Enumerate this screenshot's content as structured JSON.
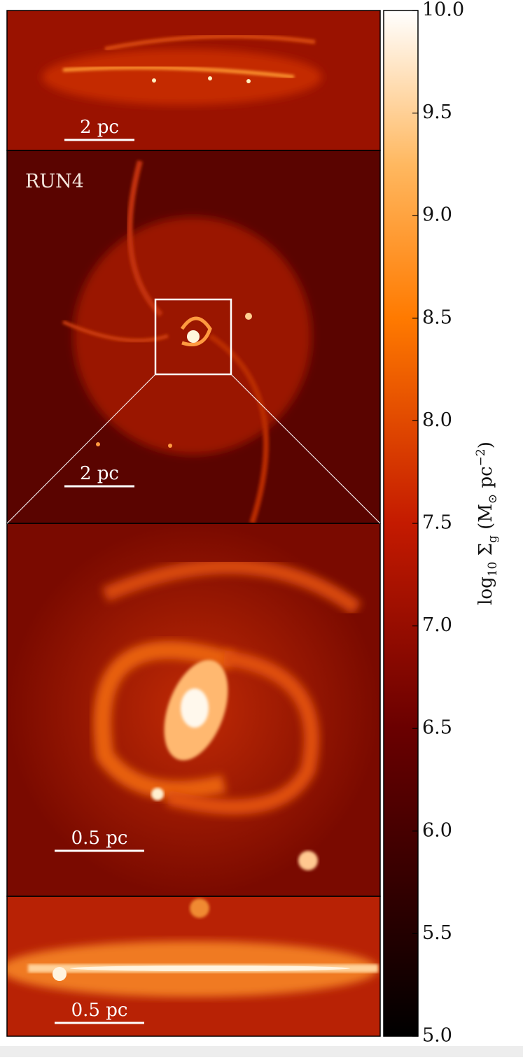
{
  "panels": [
    {
      "scale_bar": "2 pc"
    },
    {
      "label": "RUN4",
      "scale_bar": "2 pc"
    },
    {
      "scale_bar": "0.5 pc"
    },
    {
      "scale_bar": "0.5 pc"
    }
  ],
  "colorbar": {
    "label": [
      "log",
      "10",
      " Σ",
      "g",
      " (M",
      "⊙",
      " pc",
      "−2",
      ")"
    ],
    "lim": [
      5,
      10
    ],
    "ticks": [
      {
        "value": 5,
        "label": "5.0"
      },
      {
        "value": 5.5,
        "label": "5.5"
      },
      {
        "value": 6,
        "label": "6.0"
      },
      {
        "value": 6.5,
        "label": "6.5"
      },
      {
        "value": 7,
        "label": "7.0"
      },
      {
        "value": 7.5,
        "label": "7.5"
      },
      {
        "value": 8,
        "label": "8.0"
      },
      {
        "value": 8.5,
        "label": "8.5"
      },
      {
        "value": 9,
        "label": "9.0"
      },
      {
        "value": 9.5,
        "label": "9.5"
      },
      {
        "value": 10,
        "label": "10.0"
      }
    ]
  }
}
